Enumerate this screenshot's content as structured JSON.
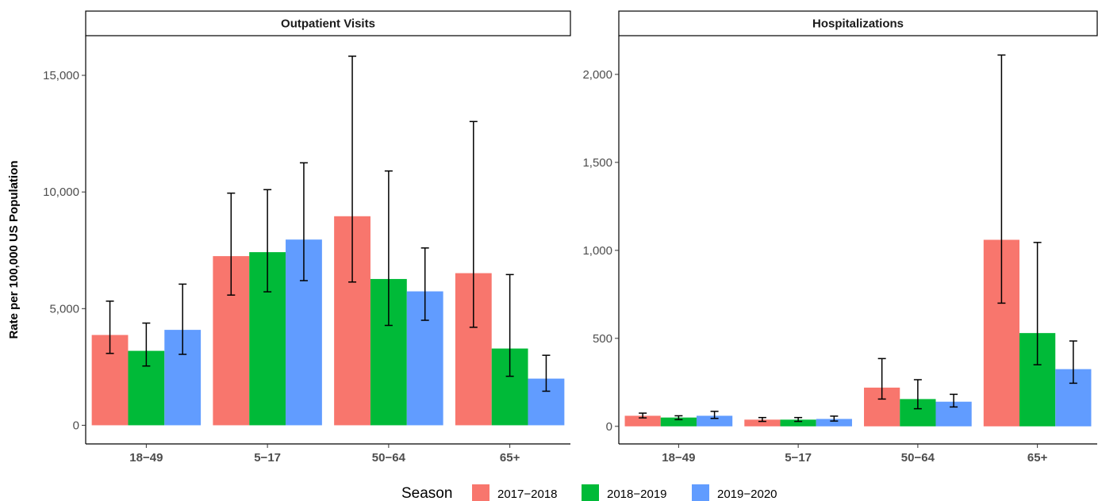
{
  "chart_data": {
    "type": "bar",
    "ylabel": "Rate per 100,000 US Population",
    "legend": {
      "title": "Season",
      "position": "bottom",
      "entries": [
        {
          "name": "2017−2018",
          "color": "#F8766D"
        },
        {
          "name": "2018−2019",
          "color": "#00BA38"
        },
        {
          "name": "2019−2020",
          "color": "#619CFF"
        }
      ]
    },
    "panels": [
      {
        "title": "Outpatient Visits",
        "categories": [
          "18−49",
          "5−17",
          "50−64",
          "65+"
        ],
        "ylim": [
          -800,
          16700
        ],
        "yticks": [
          0,
          5000,
          10000,
          15000
        ],
        "ytick_labels": [
          "0",
          "5,000",
          "10,000",
          "15,000"
        ],
        "series": [
          {
            "name": "2017−2018",
            "values": [
              3870,
              7250,
              8960,
              6520
            ],
            "lower": [
              3080,
              5580,
              6140,
              4200
            ],
            "upper": [
              5320,
              9950,
              15820,
              13020
            ]
          },
          {
            "name": "2018−2019",
            "values": [
              3190,
              7420,
              6270,
              3290
            ],
            "lower": [
              2540,
              5720,
              4280,
              2100
            ],
            "upper": [
              4380,
              10100,
              10900,
              6460
            ]
          },
          {
            "name": "2019−2020",
            "values": [
              4090,
              7960,
              5740,
              2000
            ],
            "lower": [
              3040,
              6200,
              4500,
              1460
            ],
            "upper": [
              6050,
              11250,
              7600,
              3000
            ]
          }
        ]
      },
      {
        "title": "Hospitalizations",
        "categories": [
          "18−49",
          "5−17",
          "50−64",
          "65+"
        ],
        "ylim": [
          -100,
          2220
        ],
        "yticks": [
          0,
          500,
          1000,
          1500,
          2000
        ],
        "ytick_labels": [
          "0",
          "500",
          "1,000",
          "1,500",
          "2,000"
        ],
        "series": [
          {
            "name": "2017−2018",
            "values": [
              60,
              38,
              220,
              1060
            ],
            "lower": [
              48,
              28,
              155,
              700
            ],
            "upper": [
              75,
              50,
              385,
              2110
            ]
          },
          {
            "name": "2018−2019",
            "values": [
              50,
              38,
              155,
              530
            ],
            "lower": [
              38,
              28,
              100,
              350
            ],
            "upper": [
              60,
              50,
              265,
              1045
            ]
          },
          {
            "name": "2019−2020",
            "values": [
              60,
              42,
              140,
              325
            ],
            "lower": [
              45,
              30,
              110,
              245
            ],
            "upper": [
              85,
              58,
              182,
              485
            ]
          }
        ]
      }
    ]
  }
}
